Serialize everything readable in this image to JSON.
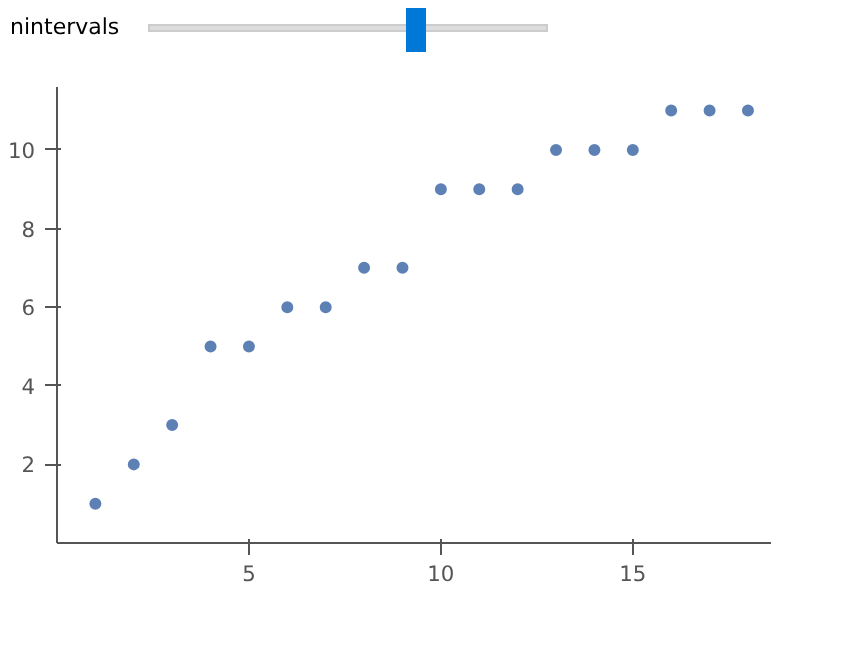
{
  "chart_data": {
    "type": "scatter",
    "annotations": [
      "nintervals"
    ],
    "x": [
      1,
      2,
      3,
      4,
      5,
      6,
      7,
      8,
      9,
      10,
      11,
      12,
      13,
      14,
      15,
      16,
      17,
      18
    ],
    "values": [
      1,
      2,
      3,
      5,
      5,
      6,
      6,
      7,
      7,
      9,
      9,
      9,
      10,
      10,
      10,
      11,
      11,
      11
    ],
    "color": "#5e81b5",
    "marker": "circle",
    "grid": false,
    "xlim": [
      0,
      18.6
    ],
    "ylim": [
      0,
      11.6
    ],
    "xticks": [
      5,
      10,
      15
    ],
    "yticks": [
      2,
      4,
      6,
      8,
      10
    ]
  }
}
